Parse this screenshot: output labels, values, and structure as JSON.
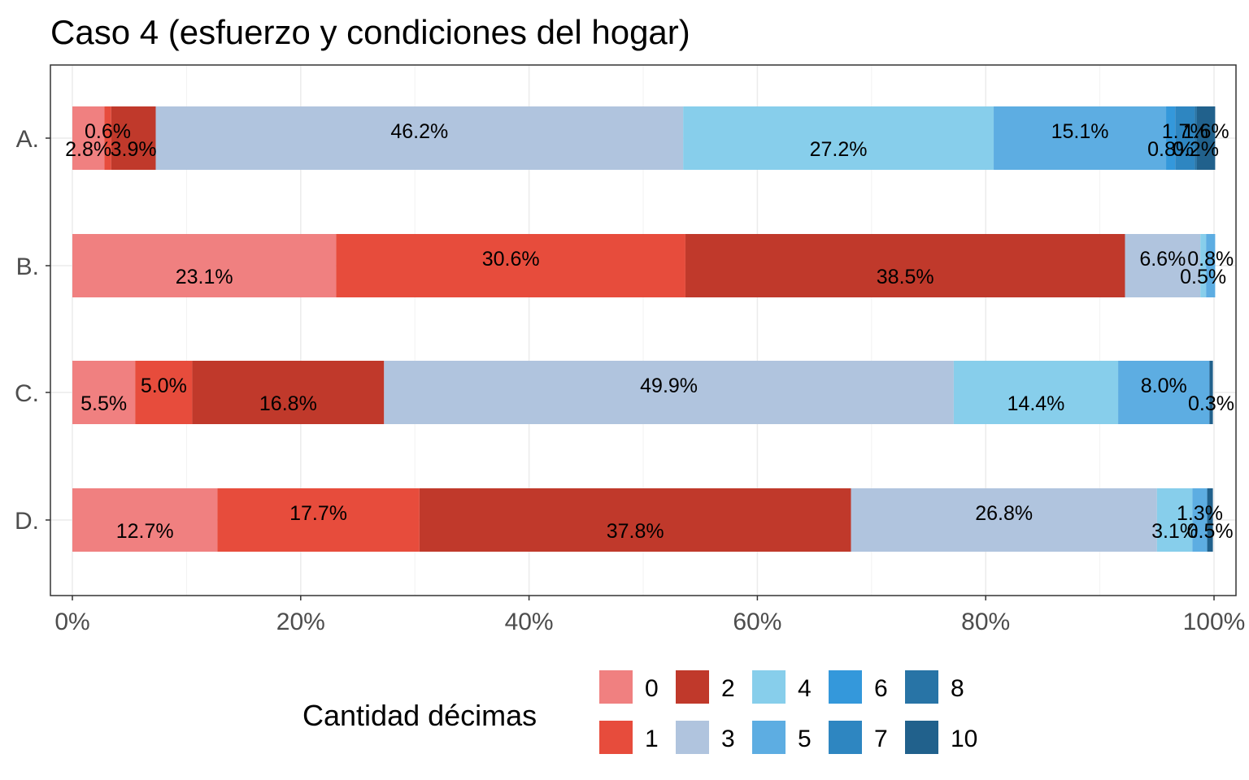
{
  "chart_data": {
    "type": "bar",
    "orientation": "horizontal",
    "stacked": "percent",
    "title": "Caso 4 (esfuerzo y condiciones del hogar)",
    "categories": [
      "A.",
      "B.",
      "C.",
      "D."
    ],
    "xlim": [
      0,
      100
    ],
    "x_ticks": [
      "0%",
      "20%",
      "40%",
      "60%",
      "80%",
      "100%"
    ],
    "grid": true,
    "legend": {
      "title": "Cantidad décimas",
      "position": "bottom"
    },
    "series": [
      {
        "name": "0",
        "color": "#F08080",
        "values": [
          2.8,
          23.1,
          5.5,
          12.7
        ],
        "labels": [
          "2.8%",
          "23.1%",
          "5.5%",
          "12.7%"
        ]
      },
      {
        "name": "1",
        "color": "#E74C3C",
        "values": [
          0.6,
          30.6,
          5.0,
          17.7
        ],
        "labels": [
          "0.6%",
          "30.6%",
          "5.0%",
          "17.7%"
        ]
      },
      {
        "name": "2",
        "color": "#C0392B",
        "values": [
          3.9,
          38.5,
          16.8,
          37.8
        ],
        "labels": [
          "3.9%",
          "38.5%",
          "16.8%",
          "37.8%"
        ]
      },
      {
        "name": "3",
        "color": "#B0C4DE",
        "values": [
          46.2,
          6.6,
          49.9,
          26.8
        ],
        "labels": [
          "46.2%",
          "6.6%",
          "49.9%",
          "26.8%"
        ]
      },
      {
        "name": "4",
        "color": "#87CEEB",
        "values": [
          27.2,
          0.5,
          14.4,
          3.1
        ],
        "labels": [
          "27.2%",
          "0.5%",
          "14.4%",
          "3.1%"
        ]
      },
      {
        "name": "5",
        "color": "#5DADE2",
        "values": [
          15.1,
          0.8,
          8.0,
          1.3
        ],
        "labels": [
          "15.1%",
          "0.8%",
          "8.0%",
          "1.3%"
        ]
      },
      {
        "name": "6",
        "color": "#3498DB",
        "values": [
          0.8,
          0,
          0,
          0
        ],
        "labels": [
          "0.8%",
          "",
          "",
          ""
        ]
      },
      {
        "name": "7",
        "color": "#2E86C1",
        "values": [
          1.7,
          0,
          0,
          0
        ],
        "labels": [
          "1.7%",
          "",
          "",
          ""
        ]
      },
      {
        "name": "8",
        "color": "#2874A6",
        "values": [
          0.2,
          0,
          0,
          0
        ],
        "labels": [
          "0.2%",
          "",
          "",
          ""
        ]
      },
      {
        "name": "10",
        "color": "#21618C",
        "values": [
          1.6,
          0,
          0.3,
          0.5
        ],
        "labels": [
          "1.6%",
          "",
          "0.3%",
          "0.5%"
        ]
      }
    ]
  }
}
